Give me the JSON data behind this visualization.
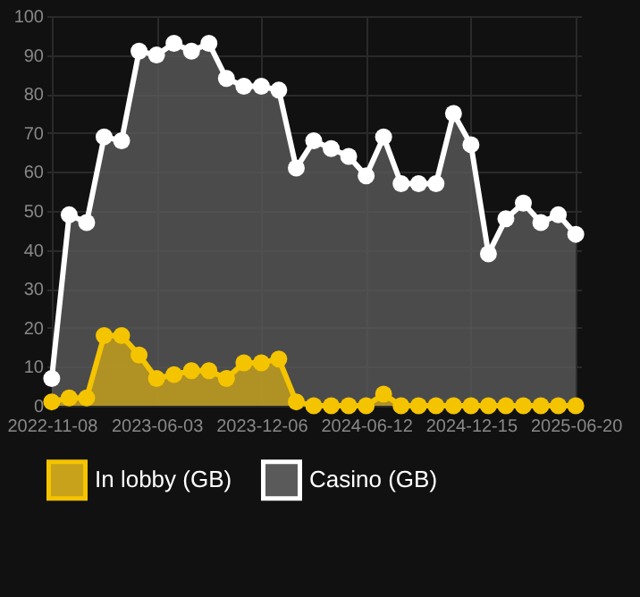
{
  "chart_data": {
    "type": "area",
    "categories": [
      "2022-11-08",
      null,
      null,
      null,
      null,
      null,
      "2023-06-03",
      null,
      null,
      null,
      null,
      null,
      "2023-12-06",
      null,
      null,
      null,
      null,
      null,
      "2024-06-12",
      null,
      null,
      null,
      null,
      null,
      "2024-12-15",
      null,
      null,
      null,
      null,
      null,
      "2025-06-20"
    ],
    "series": [
      {
        "name": "In lobby (GB)",
        "color": "#f5c400",
        "values": [
          1,
          2,
          2,
          18,
          18,
          13,
          7,
          8,
          9,
          9,
          7,
          11,
          11,
          12,
          1,
          0,
          0,
          0,
          0,
          3,
          0,
          0,
          0,
          0,
          0,
          0,
          0,
          0,
          0,
          0,
          0
        ]
      },
      {
        "name": "Casino (GB)",
        "color": "#ffffff",
        "values": [
          7,
          49,
          47,
          69,
          68,
          91,
          90,
          93,
          91,
          93,
          84,
          82,
          82,
          81,
          61,
          68,
          66,
          64,
          59,
          69,
          57,
          57,
          57,
          75,
          67,
          39,
          48,
          52,
          47,
          49,
          44
        ]
      }
    ],
    "ylim": [
      0,
      100
    ],
    "yticks": [
      0,
      10,
      20,
      30,
      40,
      50,
      60,
      70,
      80,
      90,
      100
    ],
    "grid": true,
    "legend": "bottom",
    "marker": "circle",
    "line_style": "solid"
  }
}
